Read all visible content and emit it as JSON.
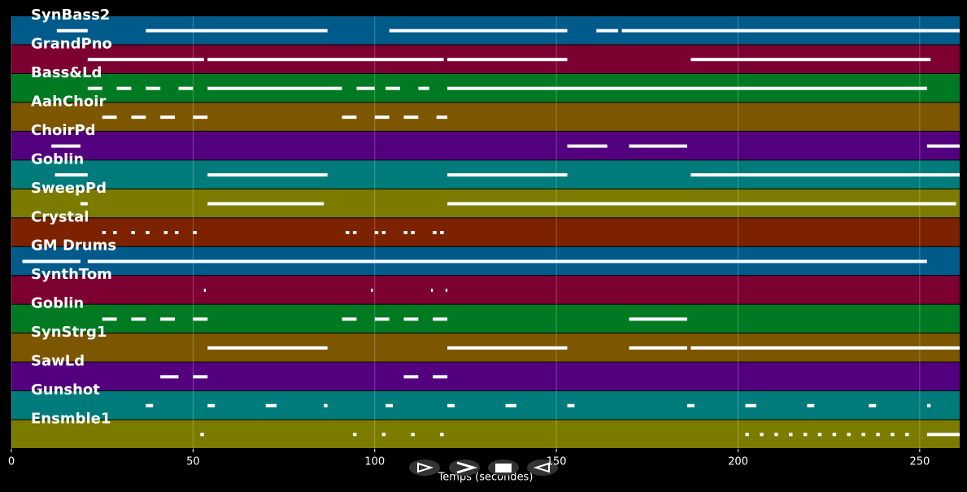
{
  "chart_data": {
    "type": "pianoroll",
    "xlabel": "Temps (secondes)",
    "xlim": [
      0,
      261
    ],
    "xticks": [
      0,
      50,
      100,
      150,
      200,
      250
    ],
    "grid": true,
    "note_color": "#ffffff",
    "series": [
      {
        "name": "SynBass2",
        "color": "#005a8a",
        "notes": [
          [
            12.5,
            21
          ],
          [
            37,
            87
          ],
          [
            104,
            153
          ],
          [
            161,
            167
          ],
          [
            168,
            252
          ],
          [
            252,
            261
          ]
        ]
      },
      {
        "name": "GrandPno",
        "color": "#7c0030",
        "notes": [
          [
            21,
            53
          ],
          [
            54,
            119
          ],
          [
            120,
            153
          ],
          [
            187,
            253
          ]
        ]
      },
      {
        "name": "Bass&Ld",
        "color": "#007a22",
        "notes": [
          [
            21,
            25
          ],
          [
            29,
            33
          ],
          [
            37,
            41
          ],
          [
            46,
            50
          ],
          [
            54,
            91
          ],
          [
            95,
            100
          ],
          [
            103,
            107
          ],
          [
            112,
            115
          ],
          [
            120,
            252
          ]
        ]
      },
      {
        "name": "AahChoir",
        "color": "#7c5600",
        "notes": [
          [
            25,
            29
          ],
          [
            33,
            37
          ],
          [
            41,
            45
          ],
          [
            50,
            54
          ],
          [
            91,
            95
          ],
          [
            100,
            104
          ],
          [
            108,
            112
          ],
          [
            117,
            120
          ]
        ]
      },
      {
        "name": "ChoirPd",
        "color": "#53007e",
        "notes": [
          [
            11,
            19
          ],
          [
            153,
            164
          ],
          [
            170,
            186
          ],
          [
            252,
            261
          ]
        ]
      },
      {
        "name": "Goblin",
        "color": "#007b7b",
        "notes": [
          [
            12,
            21
          ],
          [
            54,
            87
          ],
          [
            120,
            153
          ],
          [
            187,
            261
          ]
        ]
      },
      {
        "name": "SweepPd",
        "color": "#7b7b00",
        "notes": [
          [
            19,
            21
          ],
          [
            54,
            86
          ],
          [
            120,
            153
          ],
          [
            153,
            186
          ],
          [
            186,
            260
          ]
        ]
      },
      {
        "name": "Crystal",
        "color": "#7c2200",
        "notes": [
          [
            25,
            26
          ],
          [
            28,
            29
          ],
          [
            33,
            34
          ],
          [
            37,
            38
          ],
          [
            42,
            43
          ],
          [
            45,
            46
          ],
          [
            50,
            51
          ],
          [
            92,
            93
          ],
          [
            94,
            95
          ],
          [
            100,
            101
          ],
          [
            102,
            103
          ],
          [
            108,
            109
          ],
          [
            110,
            111
          ],
          [
            116,
            117
          ],
          [
            118,
            119
          ]
        ]
      },
      {
        "name": "GM Drums",
        "color": "#005a8a",
        "notes": [
          [
            3,
            19
          ],
          [
            21,
            252
          ]
        ]
      },
      {
        "name": "SynthTom",
        "color": "#7c0030",
        "notes": [
          [
            53,
            53.5
          ],
          [
            99,
            99.5
          ],
          [
            115.5,
            116
          ],
          [
            119.5,
            120
          ]
        ]
      },
      {
        "name": "Goblin",
        "color": "#007a22",
        "notes": [
          [
            25,
            29
          ],
          [
            33,
            37
          ],
          [
            41,
            45
          ],
          [
            50,
            54
          ],
          [
            91,
            95
          ],
          [
            100,
            104
          ],
          [
            108,
            112
          ],
          [
            116,
            120
          ],
          [
            170,
            186
          ]
        ]
      },
      {
        "name": "SynStrg1",
        "color": "#7c5600",
        "notes": [
          [
            54,
            87
          ],
          [
            120,
            153
          ],
          [
            170,
            186
          ],
          [
            187,
            252
          ],
          [
            252,
            261
          ]
        ]
      },
      {
        "name": "SawLd",
        "color": "#53007e",
        "notes": [
          [
            41,
            46
          ],
          [
            50,
            54
          ],
          [
            108,
            112
          ],
          [
            116,
            120
          ]
        ]
      },
      {
        "name": "Gunshot",
        "color": "#007b7b",
        "notes": [
          [
            37,
            39
          ],
          [
            54,
            56
          ],
          [
            70,
            73
          ],
          [
            86,
            87
          ],
          [
            103,
            105
          ],
          [
            120,
            122
          ],
          [
            136,
            139
          ],
          [
            153,
            155
          ],
          [
            186,
            188
          ],
          [
            202,
            205
          ],
          [
            219,
            221
          ],
          [
            236,
            238
          ],
          [
            252,
            253
          ]
        ]
      },
      {
        "name": "Ensmble1",
        "color": "#7b7b00",
        "notes": [
          [
            52,
            53
          ],
          [
            94,
            95
          ],
          [
            102,
            103
          ],
          [
            110,
            111
          ],
          [
            118,
            119
          ],
          [
            202,
            203
          ],
          [
            206,
            207
          ],
          [
            210,
            211
          ],
          [
            214,
            215
          ],
          [
            218,
            219
          ],
          [
            222,
            223
          ],
          [
            226,
            227
          ],
          [
            230,
            231
          ],
          [
            234,
            235
          ],
          [
            238,
            239
          ],
          [
            242,
            243
          ],
          [
            246,
            247
          ],
          [
            252,
            261
          ]
        ]
      }
    ]
  }
}
